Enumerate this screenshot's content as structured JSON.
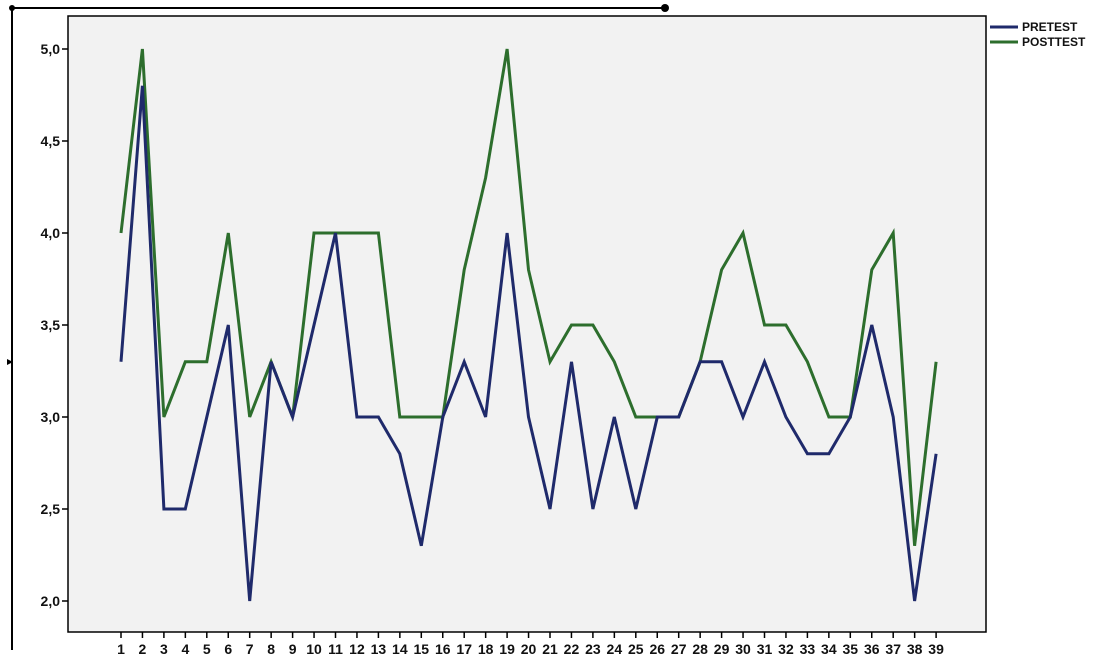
{
  "chart_data": {
    "type": "line",
    "title": "",
    "xlabel": "",
    "ylabel": "",
    "categories": [
      "1",
      "2",
      "3",
      "4",
      "5",
      "6",
      "7",
      "8",
      "9",
      "10",
      "11",
      "12",
      "13",
      "14",
      "15",
      "16",
      "17",
      "18",
      "19",
      "20",
      "21",
      "22",
      "23",
      "24",
      "25",
      "26",
      "27",
      "28",
      "29",
      "30",
      "31",
      "32",
      "33",
      "34",
      "35",
      "36",
      "37",
      "38",
      "39"
    ],
    "ylim": [
      1.9,
      5.15
    ],
    "yticks": [
      2.0,
      2.5,
      3.0,
      3.5,
      4.0,
      4.5,
      5.0
    ],
    "ytick_labels": [
      "2,0",
      "2,5",
      "3,0",
      "3,5",
      "4,0",
      "4,5",
      "5,0"
    ],
    "grid": false,
    "legend_position": "top-right, outside plot",
    "background": "#f2f2f2",
    "series": [
      {
        "name": "PRETEST",
        "color": "#1f2a6b",
        "values": [
          3.3,
          4.8,
          2.5,
          2.5,
          3.0,
          3.5,
          2.0,
          3.3,
          3.0,
          3.5,
          4.0,
          3.0,
          3.0,
          2.8,
          2.3,
          3.0,
          3.3,
          3.0,
          4.0,
          3.0,
          2.5,
          3.3,
          2.5,
          3.0,
          2.5,
          3.0,
          3.0,
          3.3,
          3.3,
          3.0,
          3.3,
          3.0,
          2.8,
          2.8,
          3.0,
          3.5,
          3.0,
          2.0,
          2.8
        ]
      },
      {
        "name": "POSTTEST",
        "color": "#2d6e2d",
        "values": [
          4.0,
          5.0,
          3.0,
          3.3,
          3.3,
          4.0,
          3.0,
          3.3,
          3.0,
          4.0,
          4.0,
          4.0,
          4.0,
          3.0,
          3.0,
          3.0,
          3.8,
          4.3,
          5.0,
          3.8,
          3.3,
          3.5,
          3.5,
          3.3,
          3.0,
          3.0,
          3.0,
          3.3,
          3.8,
          4.0,
          3.5,
          3.5,
          3.3,
          3.0,
          3.0,
          3.8,
          4.0,
          2.3,
          3.3
        ]
      }
    ]
  }
}
